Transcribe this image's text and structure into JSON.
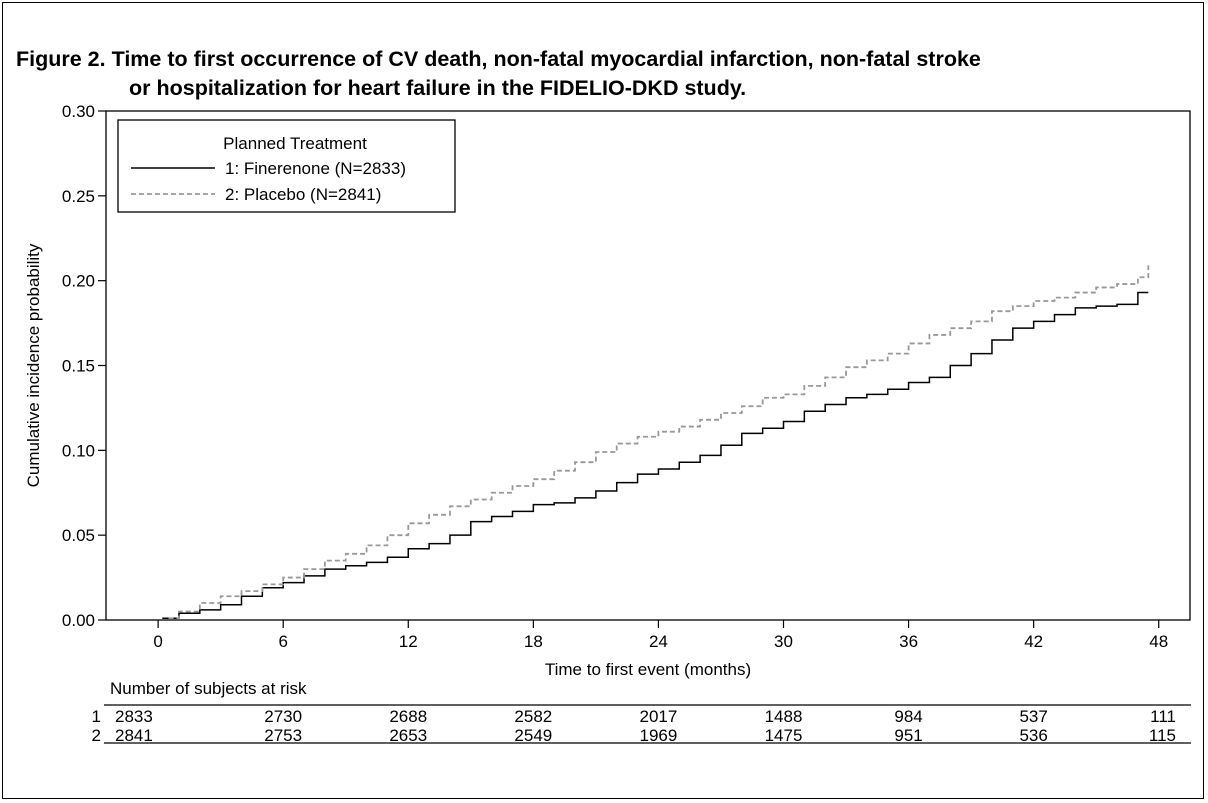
{
  "figure": {
    "title_line1": "Figure 2. Time to first occurrence of CV death, non-fatal myocardial infarction, non-fatal stroke",
    "title_line2": "or hospitalization for heart failure in the FIDELIO-DKD study."
  },
  "chart_data": {
    "type": "line",
    "xlabel": "Time to first event (months)",
    "ylabel": "Cumulative incidence probability",
    "xlim": [
      -2.5,
      49.5
    ],
    "ylim": [
      0,
      0.3
    ],
    "xticks": [
      0,
      6,
      12,
      18,
      24,
      30,
      36,
      42,
      48
    ],
    "yticks": [
      0.0,
      0.05,
      0.1,
      0.15,
      0.2,
      0.25,
      0.3
    ],
    "ytick_labels": [
      "0.00",
      "0.05",
      "0.10",
      "0.15",
      "0.20",
      "0.25",
      "0.30"
    ],
    "legend": {
      "title": "Planned Treatment",
      "placement": "top-left",
      "entries": [
        "1: Finerenone (N=2833)",
        "2: Placebo (N=2841)"
      ]
    },
    "series": [
      {
        "name": "1: Finerenone (N=2833)",
        "style": "solid",
        "color": "#000000",
        "x": [
          0.2,
          1,
          2,
          3,
          4,
          5,
          6,
          7,
          8,
          9,
          10,
          11,
          12,
          13,
          14,
          15,
          16,
          17,
          18,
          19,
          20,
          21,
          22,
          23,
          24,
          25,
          26,
          27,
          28,
          29,
          30,
          31,
          32,
          33,
          34,
          35,
          36,
          37,
          38,
          39,
          40,
          41,
          42,
          43,
          44,
          45,
          46,
          47,
          47.5
        ],
        "y": [
          0.001,
          0.004,
          0.006,
          0.009,
          0.014,
          0.019,
          0.022,
          0.026,
          0.03,
          0.032,
          0.034,
          0.037,
          0.042,
          0.045,
          0.05,
          0.058,
          0.061,
          0.064,
          0.068,
          0.069,
          0.072,
          0.076,
          0.081,
          0.086,
          0.089,
          0.093,
          0.097,
          0.103,
          0.11,
          0.113,
          0.117,
          0.123,
          0.127,
          0.131,
          0.133,
          0.136,
          0.14,
          0.143,
          0.15,
          0.157,
          0.165,
          0.172,
          0.176,
          0.18,
          0.184,
          0.185,
          0.186,
          0.193,
          0.193
        ]
      },
      {
        "name": "2: Placebo (N=2841)",
        "style": "dashed",
        "color": "#999999",
        "x": [
          0.5,
          1,
          2,
          3,
          4,
          5,
          6,
          7,
          8,
          9,
          10,
          11,
          12,
          13,
          14,
          15,
          16,
          17,
          18,
          19,
          20,
          21,
          22,
          23,
          24,
          25,
          26,
          27,
          28,
          29,
          30,
          31,
          32,
          33,
          34,
          35,
          36,
          37,
          38,
          39,
          40,
          41,
          42,
          43,
          44,
          45,
          46,
          47,
          47.5
        ],
        "y": [
          0.001,
          0.005,
          0.01,
          0.014,
          0.017,
          0.021,
          0.025,
          0.03,
          0.035,
          0.039,
          0.044,
          0.05,
          0.057,
          0.062,
          0.067,
          0.071,
          0.075,
          0.079,
          0.083,
          0.088,
          0.093,
          0.099,
          0.104,
          0.108,
          0.111,
          0.114,
          0.118,
          0.122,
          0.126,
          0.131,
          0.133,
          0.138,
          0.143,
          0.149,
          0.153,
          0.157,
          0.163,
          0.168,
          0.172,
          0.176,
          0.182,
          0.185,
          0.188,
          0.19,
          0.193,
          0.196,
          0.198,
          0.202,
          0.209
        ]
      }
    ],
    "risk_table": {
      "title": "Number of subjects at risk",
      "rows": [
        {
          "label": "1",
          "values": [
            "2833",
            "2730",
            "2688",
            "2582",
            "2017",
            "1488",
            "984",
            "537",
            "111"
          ]
        },
        {
          "label": "2",
          "values": [
            "2841",
            "2753",
            "2653",
            "2549",
            "1969",
            "1475",
            "951",
            "536",
            "115"
          ]
        }
      ]
    }
  }
}
